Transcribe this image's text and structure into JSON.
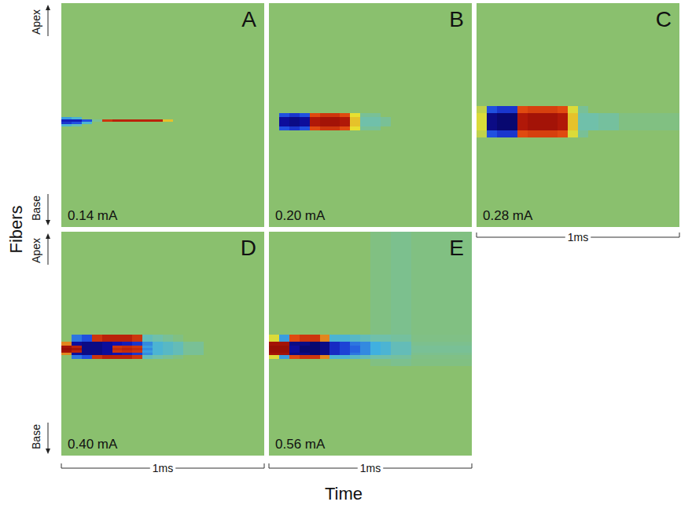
{
  "figure": {
    "ylabel": "Fibers",
    "xlabel": "Time"
  },
  "chart_data": [
    {
      "type": "heatmap",
      "title": "A",
      "annotation": "0.14 mA",
      "xlim": [
        0,
        1
      ],
      "ylim": [
        0,
        100
      ],
      "tick_labels": false,
      "zlim": [
        -1,
        1
      ],
      "y_ends": {
        "top": "Apex",
        "bottom": "Base"
      },
      "x_edges": [
        0,
        0.05,
        0.1,
        0.15,
        0.2,
        0.25,
        0.3,
        0.35,
        0.4,
        0.45,
        0.5,
        0.55,
        0.6,
        0.7,
        1
      ],
      "y_edges": [
        0,
        46,
        49,
        51,
        52,
        53,
        54,
        55,
        57,
        60,
        100
      ],
      "cells": [
        [
          0,
          0,
          0,
          0,
          0,
          0,
          0,
          0,
          0,
          0,
          0,
          0,
          0,
          0
        ],
        [
          0,
          0,
          0,
          0,
          0,
          0,
          0,
          0,
          0,
          0,
          0,
          0,
          0,
          0
        ],
        [
          0,
          0,
          0,
          0,
          0,
          0,
          0,
          0,
          0,
          0,
          0,
          0,
          0,
          0
        ],
        [
          -0.4,
          -0.3,
          0,
          0,
          0,
          0,
          0,
          0,
          0,
          0,
          0,
          0,
          0,
          0
        ],
        [
          -0.8,
          -0.8,
          -0.6,
          -0.1,
          0.7,
          0.8,
          0.8,
          0.8,
          0.8,
          0.8,
          0.4,
          0,
          0,
          0
        ],
        [
          -0.7,
          -0.6,
          -0.3,
          0,
          0,
          0,
          0,
          0,
          0,
          0,
          0,
          0,
          0,
          0
        ],
        [
          -0.3,
          -0.2,
          0,
          0,
          0,
          0,
          0,
          0,
          0,
          0,
          0,
          0,
          0,
          0
        ],
        [
          0,
          0,
          0,
          0,
          0,
          0,
          0,
          0,
          0,
          0,
          0,
          0,
          0,
          0
        ],
        [
          0,
          0,
          0,
          0,
          0,
          0,
          0,
          0,
          0,
          0,
          0,
          0,
          0,
          0
        ],
        [
          0,
          0,
          0,
          0,
          0,
          0,
          0,
          0,
          0,
          0,
          0,
          0,
          0,
          0
        ]
      ]
    },
    {
      "type": "heatmap",
      "title": "B",
      "annotation": "0.20 mA",
      "xlim": [
        0,
        1
      ],
      "ylim": [
        0,
        100
      ],
      "tick_labels": false,
      "zlim": [
        -1,
        1
      ],
      "x_edges": [
        0,
        0.05,
        0.1,
        0.15,
        0.2,
        0.25,
        0.3,
        0.35,
        0.4,
        0.45,
        0.5,
        0.55,
        0.6,
        0.7,
        1
      ],
      "y_edges": [
        0,
        46,
        49,
        51,
        52,
        53,
        54,
        55,
        57,
        60,
        100
      ],
      "cells": [
        [
          0,
          0,
          0,
          0,
          0,
          0,
          0,
          0,
          0,
          0,
          0,
          0,
          0,
          0
        ],
        [
          0,
          0,
          0,
          0,
          0,
          0,
          0,
          0,
          0,
          0,
          0,
          0,
          0,
          0
        ],
        [
          0,
          -0.6,
          -0.7,
          -0.6,
          0.6,
          0.7,
          0.7,
          0.6,
          0.35,
          -0.1,
          -0.1,
          0,
          0,
          0
        ],
        [
          0,
          -0.9,
          -0.95,
          -0.9,
          0.85,
          0.9,
          0.9,
          0.85,
          0.4,
          -0.15,
          -0.15,
          -0.1,
          0,
          0
        ],
        [
          0,
          -0.9,
          -0.95,
          -0.9,
          0.85,
          0.9,
          0.9,
          0.85,
          0.4,
          -0.15,
          -0.15,
          -0.1,
          0,
          0
        ],
        [
          0,
          -0.9,
          -0.95,
          -0.9,
          0.85,
          0.9,
          0.9,
          0.85,
          0.4,
          -0.15,
          -0.15,
          -0.1,
          0,
          0
        ],
        [
          0,
          -0.9,
          -0.95,
          -0.9,
          0.85,
          0.9,
          0.9,
          0.85,
          0.4,
          -0.15,
          -0.15,
          -0.1,
          0,
          0
        ],
        [
          0,
          -0.6,
          -0.7,
          -0.6,
          0.6,
          0.7,
          0.7,
          0.6,
          0.35,
          -0.1,
          -0.1,
          0,
          0,
          0
        ],
        [
          0,
          0,
          0,
          0,
          0,
          0,
          0,
          0,
          0,
          0,
          0,
          0,
          0,
          0
        ],
        [
          0,
          0,
          0,
          0,
          0,
          0,
          0,
          0,
          0,
          0,
          0,
          0,
          0,
          0
        ]
      ]
    },
    {
      "type": "heatmap",
      "title": "C",
      "annotation": "0.28 mA",
      "xlim": [
        0,
        1
      ],
      "ylim": [
        0,
        100
      ],
      "tick_labels": false,
      "zlim": [
        -1,
        1
      ],
      "scale_bar": {
        "value": 1,
        "label": "1ms"
      },
      "x_edges": [
        0,
        0.05,
        0.1,
        0.15,
        0.2,
        0.25,
        0.3,
        0.35,
        0.4,
        0.45,
        0.5,
        0.55,
        0.6,
        0.7,
        1
      ],
      "y_edges": [
        0,
        46,
        49,
        51,
        52,
        53,
        54,
        55,
        57,
        60,
        100
      ],
      "cells": [
        [
          0,
          0,
          0,
          0,
          0,
          0,
          0,
          0,
          0,
          0,
          0,
          0,
          0,
          0
        ],
        [
          0.2,
          -0.6,
          -0.7,
          -0.7,
          0.6,
          0.65,
          0.65,
          0.65,
          0.6,
          0.3,
          -0.1,
          0,
          0,
          0
        ],
        [
          0.3,
          -0.95,
          -1,
          -1,
          0.85,
          0.9,
          0.9,
          0.9,
          0.85,
          0.4,
          -0.15,
          -0.15,
          -0.12,
          -0.05
        ],
        [
          0.3,
          -0.95,
          -1,
          -1,
          0.85,
          0.9,
          0.9,
          0.9,
          0.85,
          0.4,
          -0.15,
          -0.15,
          -0.12,
          -0.05
        ],
        [
          0.3,
          -0.95,
          -1,
          -1,
          0.85,
          0.9,
          0.9,
          0.9,
          0.85,
          0.4,
          -0.15,
          -0.15,
          -0.12,
          -0.05
        ],
        [
          0.3,
          -0.95,
          -1,
          -1,
          0.85,
          0.9,
          0.9,
          0.9,
          0.85,
          0.4,
          -0.15,
          -0.15,
          -0.12,
          -0.05
        ],
        [
          0.3,
          -0.95,
          -1,
          -1,
          0.85,
          0.9,
          0.9,
          0.9,
          0.85,
          0.4,
          -0.15,
          -0.15,
          -0.12,
          -0.05
        ],
        [
          0.3,
          -0.95,
          -1,
          -1,
          0.85,
          0.9,
          0.9,
          0.9,
          0.85,
          0.4,
          -0.15,
          -0.15,
          -0.12,
          -0.05
        ],
        [
          0.2,
          -0.6,
          -0.7,
          -0.7,
          0.6,
          0.65,
          0.65,
          0.65,
          0.6,
          0.3,
          -0.1,
          0,
          0,
          0
        ],
        [
          0,
          0,
          0,
          0,
          0,
          0,
          0,
          0,
          0,
          0,
          0,
          0,
          0,
          0
        ]
      ]
    },
    {
      "type": "heatmap",
      "title": "D",
      "annotation": "0.40 mA",
      "xlim": [
        0,
        1
      ],
      "ylim": [
        0,
        100
      ],
      "tick_labels": false,
      "zlim": [
        -1,
        1
      ],
      "y_ends": {
        "top": "Apex",
        "bottom": "Base"
      },
      "scale_bar": {
        "value": 1,
        "label": "1ms"
      },
      "x_edges": [
        0,
        0.05,
        0.1,
        0.15,
        0.2,
        0.25,
        0.3,
        0.35,
        0.4,
        0.45,
        0.5,
        0.55,
        0.6,
        0.7,
        1
      ],
      "y_edges": [
        0,
        46,
        49,
        51,
        52,
        53,
        54,
        55,
        57,
        60,
        100
      ],
      "cells": [
        [
          0,
          0,
          0,
          0,
          0,
          0,
          0,
          0,
          0,
          0,
          0,
          0,
          0,
          0
        ],
        [
          0,
          -0.5,
          -0.6,
          0.7,
          0.8,
          0.8,
          0.8,
          0.7,
          -0.2,
          -0.15,
          -0.1,
          -0.05,
          0,
          0
        ],
        [
          0.5,
          -0.9,
          -0.95,
          -0.95,
          -0.9,
          -0.85,
          -0.8,
          -0.7,
          -0.45,
          -0.3,
          -0.25,
          -0.2,
          -0.1,
          0
        ],
        [
          0.9,
          0.8,
          -0.95,
          -0.95,
          -0.9,
          0.7,
          0.75,
          0.7,
          -0.4,
          -0.3,
          -0.25,
          -0.2,
          -0.1,
          0
        ],
        [
          0.95,
          0.9,
          -0.95,
          -0.95,
          -0.9,
          0.75,
          0.8,
          0.75,
          -0.45,
          -0.3,
          -0.25,
          -0.2,
          -0.1,
          0
        ],
        [
          0.9,
          0.8,
          -0.95,
          -0.95,
          -0.9,
          0.7,
          0.75,
          0.7,
          -0.4,
          -0.3,
          -0.25,
          -0.2,
          -0.1,
          0
        ],
        [
          0.5,
          -0.9,
          -0.95,
          -0.95,
          -0.9,
          -0.85,
          -0.8,
          -0.7,
          -0.45,
          -0.3,
          -0.25,
          -0.2,
          -0.1,
          0
        ],
        [
          0,
          -0.5,
          -0.6,
          0.7,
          0.8,
          0.8,
          0.8,
          0.7,
          -0.2,
          -0.15,
          -0.1,
          -0.05,
          0,
          0
        ],
        [
          0,
          0,
          0,
          0,
          0,
          0,
          0,
          0,
          0,
          0,
          0,
          0,
          0,
          0
        ],
        [
          0,
          0,
          0,
          0,
          0,
          0,
          0,
          0,
          0,
          0,
          0,
          0,
          0,
          0
        ]
      ]
    },
    {
      "type": "heatmap",
      "title": "E",
      "annotation": "0.56 mA",
      "xlim": [
        0,
        1
      ],
      "ylim": [
        0,
        100
      ],
      "tick_labels": false,
      "zlim": [
        -1,
        1
      ],
      "scale_bar": {
        "value": 1,
        "label": "1ms"
      },
      "x_edges": [
        0,
        0.05,
        0.1,
        0.15,
        0.2,
        0.25,
        0.3,
        0.35,
        0.4,
        0.45,
        0.5,
        0.55,
        0.6,
        0.7,
        1
      ],
      "y_edges": [
        0,
        46,
        49,
        51,
        52,
        53,
        54,
        55,
        57,
        60,
        100
      ],
      "cells": [
        [
          0,
          0,
          0,
          0,
          0,
          0,
          0,
          0,
          0,
          0,
          -0.05,
          -0.05,
          -0.08,
          -0.05
        ],
        [
          0.3,
          -0.4,
          0.6,
          0.7,
          0.7,
          0.5,
          -0.3,
          -0.3,
          -0.25,
          -0.2,
          -0.15,
          -0.15,
          -0.12,
          -0.06
        ],
        [
          0.9,
          0.9,
          -0.95,
          -0.95,
          -1,
          -0.95,
          -0.75,
          -0.65,
          -0.5,
          -0.45,
          -0.35,
          -0.3,
          -0.2,
          -0.08
        ],
        [
          0.95,
          0.95,
          -0.9,
          -1,
          -1,
          -0.95,
          -0.75,
          -0.65,
          -0.55,
          -0.45,
          -0.35,
          -0.3,
          -0.2,
          -0.1
        ],
        [
          0.95,
          0.95,
          -0.9,
          -1,
          -1,
          -0.95,
          -0.75,
          -0.65,
          -0.55,
          -0.45,
          -0.35,
          -0.3,
          -0.2,
          -0.1
        ],
        [
          0.95,
          0.95,
          -0.9,
          -1,
          -1,
          -0.95,
          -0.75,
          -0.65,
          -0.55,
          -0.45,
          -0.35,
          -0.3,
          -0.2,
          -0.1
        ],
        [
          0.9,
          0.9,
          -0.95,
          -0.95,
          -1,
          -0.95,
          -0.75,
          -0.65,
          -0.5,
          -0.45,
          -0.35,
          -0.3,
          -0.2,
          -0.08
        ],
        [
          0.3,
          -0.4,
          0.6,
          0.7,
          0.7,
          0.5,
          -0.3,
          -0.3,
          -0.25,
          -0.2,
          -0.15,
          -0.15,
          -0.12,
          -0.06
        ],
        [
          0,
          0,
          0,
          0,
          0,
          0,
          0,
          0,
          0,
          0,
          -0.05,
          -0.05,
          -0.08,
          -0.05
        ],
        [
          0,
          0,
          0,
          0,
          0,
          0,
          0,
          0,
          0,
          0,
          0,
          0,
          0,
          0
        ]
      ]
    }
  ]
}
